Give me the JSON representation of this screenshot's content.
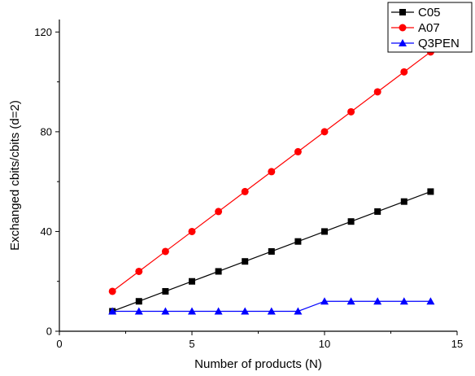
{
  "chart_data": {
    "type": "line",
    "title": "",
    "xlabel": "Number of products (N)",
    "ylabel": "Exchanged cbits/cbits (d=2)",
    "xlim": [
      0,
      15
    ],
    "ylim": [
      0,
      125
    ],
    "x_ticks": [
      0,
      5,
      10,
      15
    ],
    "y_ticks": [
      0,
      40,
      80,
      120
    ],
    "x_tick_labels": [
      "0",
      "5",
      "10",
      "15"
    ],
    "y_tick_labels": [
      "0",
      "40",
      "80",
      "120"
    ],
    "grid": false,
    "legend_position": "top-right",
    "x": [
      2,
      3,
      4,
      5,
      6,
      7,
      8,
      9,
      10,
      11,
      12,
      13,
      14
    ],
    "series": [
      {
        "name": "C05",
        "color": "#000000",
        "marker": "square",
        "values": [
          8,
          12,
          16,
          20,
          24,
          28,
          32,
          36,
          40,
          44,
          48,
          52,
          56
        ]
      },
      {
        "name": "A07",
        "color": "#ff0000",
        "marker": "circle",
        "values": [
          16,
          24,
          32,
          40,
          48,
          56,
          64,
          72,
          80,
          88,
          96,
          104,
          112
        ]
      },
      {
        "name": "Q3PEN",
        "color": "#0000ff",
        "marker": "triangle",
        "values": [
          8,
          8,
          8,
          8,
          8,
          8,
          8,
          8,
          12,
          12,
          12,
          12,
          12
        ]
      }
    ]
  }
}
